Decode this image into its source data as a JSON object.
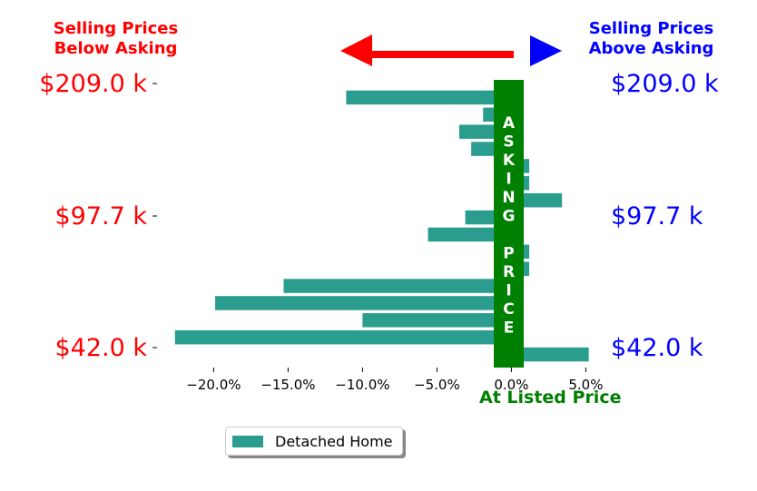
{
  "annotations": {
    "below_asking": [
      "Selling Prices",
      "Below Asking"
    ],
    "above_asking": [
      "Selling Prices",
      "Above Asking"
    ],
    "asking_price": "ASKING PRICE",
    "at_listed_price": "At Listed Price"
  },
  "colors": {
    "bar": "#2a9d8f",
    "asking_band": "#008000",
    "below": "#ff0000",
    "above": "#0000ff"
  },
  "chart_data": {
    "type": "bar",
    "orientation": "horizontal",
    "series": [
      {
        "name": "Detached Home",
        "values": [
          -11.1,
          -1.9,
          -3.5,
          -2.7,
          1.2,
          1.2,
          3.4,
          -3.1,
          -5.6,
          1.2,
          1.2,
          -15.3,
          -19.9,
          -10.0,
          -22.6,
          5.2
        ]
      }
    ],
    "xlim": [
      -23.5,
      6.5
    ],
    "xticks": [
      "−20.0%",
      "−15.0%",
      "−10.0%",
      "−5.0%",
      "0.0%",
      "5.0%"
    ],
    "xtick_values": [
      -20,
      -15,
      -10,
      -5,
      0,
      5
    ],
    "price_labels": [
      "$209.0 k",
      "$97.7 k",
      "$42.0 k"
    ],
    "legend": {
      "entries": [
        "Detached Home"
      ],
      "placement": "bottom-center"
    }
  }
}
